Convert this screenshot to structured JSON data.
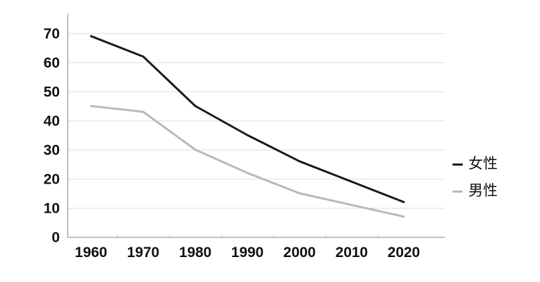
{
  "chart_data": {
    "type": "line",
    "categories": [
      "1960",
      "1970",
      "1980",
      "1990",
      "2000",
      "2010",
      "2020"
    ],
    "series": [
      {
        "name": "女性",
        "values": [
          69,
          62,
          45,
          35,
          26,
          19,
          12
        ],
        "color": "#1a1a1a"
      },
      {
        "name": "男性",
        "values": [
          45,
          43,
          30,
          22,
          15,
          11,
          7
        ],
        "color": "#b9b9b9"
      }
    ],
    "yticks": [
      0,
      10,
      20,
      30,
      40,
      50,
      60,
      70
    ],
    "ylim": [
      0,
      77
    ],
    "title": "",
    "xlabel": "",
    "ylabel": "",
    "grid": true,
    "legend_position": "right"
  },
  "colors": {
    "background": "#ffffff",
    "grid": "#e0e0e0",
    "axis": "#a8a8a8",
    "boundary_tick": "#c4c4c4",
    "label": "#111111"
  }
}
